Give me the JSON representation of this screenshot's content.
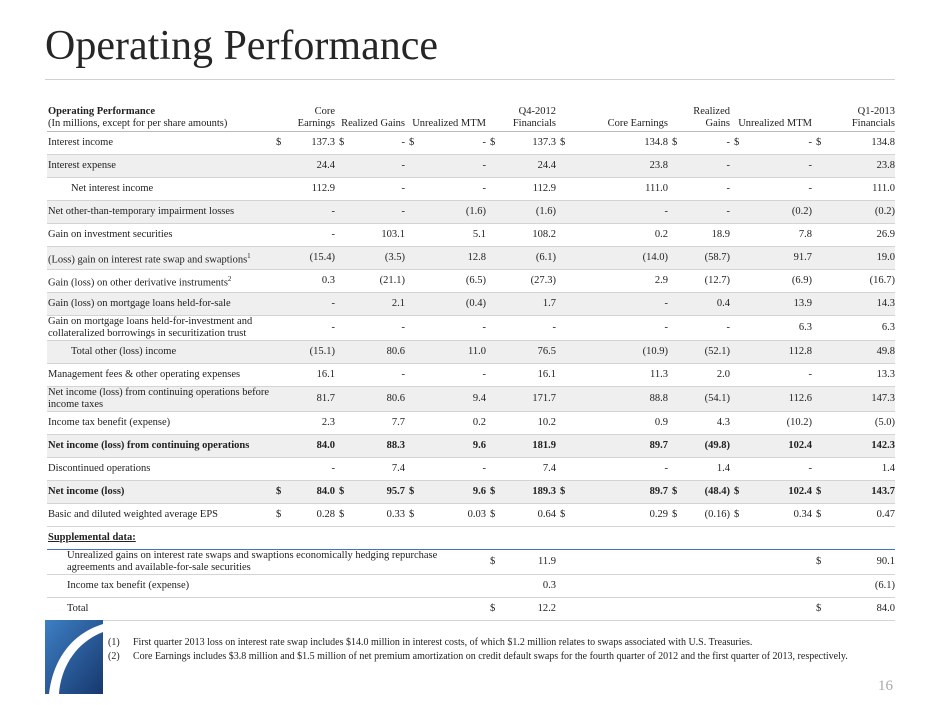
{
  "title": "Operating Performance",
  "table": {
    "label": "Operating Performance",
    "sublabel": "(In millions, except for per share amounts)",
    "columns": [
      "Core Earnings",
      "Realized Gains",
      "Unrealized MTM",
      "Q4-2012 Financials",
      "Core Earnings",
      "Realized Gains",
      "Unrealized MTM",
      "Q1-2013 Financials"
    ],
    "rows": [
      {
        "label": "Interest income",
        "currency": "$",
        "values": [
          "137.3",
          "-",
          "-",
          "137.3",
          "134.8",
          "-",
          "-",
          "134.8"
        ]
      },
      {
        "label": "Interest expense",
        "values": [
          "24.4",
          "-",
          "-",
          "24.4",
          "23.8",
          "-",
          "-",
          "23.8"
        ]
      },
      {
        "label": "Net interest income",
        "style": "indent",
        "values": [
          "112.9",
          "-",
          "-",
          "112.9",
          "111.0",
          "-",
          "-",
          "111.0"
        ]
      },
      {
        "label": "Net other-than-temporary impairment losses",
        "values": [
          "-",
          "-",
          "(1.6)",
          "(1.6)",
          "-",
          "-",
          "(0.2)",
          "(0.2)"
        ]
      },
      {
        "label": "Gain on investment securities",
        "values": [
          "-",
          "103.1",
          "5.1",
          "108.2",
          "0.2",
          "18.9",
          "7.8",
          "26.9"
        ]
      },
      {
        "label": "(Loss) gain on interest rate swap and swaptions",
        "note": "1",
        "values": [
          "(15.4)",
          "(3.5)",
          "12.8",
          "(6.1)",
          "(14.0)",
          "(58.7)",
          "91.7",
          "19.0"
        ]
      },
      {
        "label": "Gain (loss) on other derivative instruments",
        "note": "2",
        "values": [
          "0.3",
          "(21.1)",
          "(6.5)",
          "(27.3)",
          "2.9",
          "(12.7)",
          "(6.9)",
          "(16.7)"
        ]
      },
      {
        "label": "Gain (loss) on mortgage loans held-for-sale",
        "values": [
          "-",
          "2.1",
          "(0.4)",
          "1.7",
          "-",
          "0.4",
          "13.9",
          "14.3"
        ]
      },
      {
        "label": "Gain on mortgage loans held-for-investment and collateralized borrowings in securitization trust",
        "values": [
          "-",
          "-",
          "-",
          "-",
          "-",
          "-",
          "6.3",
          "6.3"
        ]
      },
      {
        "label": "Total other (loss) income",
        "style": "indent",
        "values": [
          "(15.1)",
          "80.6",
          "11.0",
          "76.5",
          "(10.9)",
          "(52.1)",
          "112.8",
          "49.8"
        ]
      },
      {
        "label": "Management fees & other operating expenses",
        "values": [
          "16.1",
          "-",
          "-",
          "16.1",
          "11.3",
          "2.0",
          "-",
          "13.3"
        ]
      },
      {
        "label": "Net income (loss) from continuing operations before income taxes",
        "values": [
          "81.7",
          "80.6",
          "9.4",
          "171.7",
          "88.8",
          "(54.1)",
          "112.6",
          "147.3"
        ]
      },
      {
        "label": "Income tax benefit (expense)",
        "values": [
          "2.3",
          "7.7",
          "0.2",
          "10.2",
          "0.9",
          "4.3",
          "(10.2)",
          "(5.0)"
        ]
      },
      {
        "label": "Net income (loss) from continuing operations",
        "style": "bold",
        "values": [
          "84.0",
          "88.3",
          "9.6",
          "181.9",
          "89.7",
          "(49.8)",
          "102.4",
          "142.3"
        ]
      },
      {
        "label": "Discontinued operations",
        "values": [
          "-",
          "7.4",
          "-",
          "7.4",
          "-",
          "1.4",
          "-",
          "1.4"
        ]
      },
      {
        "label": "Net income (loss)",
        "style": "bold",
        "currency": "$",
        "values": [
          "84.0",
          "95.7",
          "9.6",
          "189.3",
          "89.7",
          "(48.4)",
          "102.4",
          "143.7"
        ]
      },
      {
        "label": "Basic and diluted weighted average EPS",
        "currency": "$",
        "values": [
          "0.28",
          "0.33",
          "0.03",
          "0.64",
          "0.29",
          "(0.16)",
          "0.34",
          "0.47"
        ]
      }
    ]
  },
  "supplemental": {
    "title": "Supplemental data:",
    "rows": [
      {
        "label": "Unrealized gains on interest rate swaps and swaptions economically hedging repurchase agreements and available-for-sale securities",
        "currency": "$",
        "values": [
          "11.9",
          "90.1"
        ]
      },
      {
        "label": "Income tax benefit (expense)",
        "values": [
          "0.3",
          "(6.1)"
        ]
      },
      {
        "label": "Total",
        "currency": "$",
        "values": [
          "12.2",
          "84.0"
        ]
      }
    ]
  },
  "footnotes": [
    {
      "marker": "(1)",
      "text": "First quarter 2013 loss on interest rate swap includes $14.0 million in interest costs, of which $1.2 million relates to swaps associated with U.S. Treasuries."
    },
    {
      "marker": "(2)",
      "text": "Core Earnings includes $3.8 million and $1.5 million of net premium amortization on credit default swaps for the fourth quarter of 2012 and the first quarter of 2013, respectively."
    }
  ],
  "page_number": "16"
}
